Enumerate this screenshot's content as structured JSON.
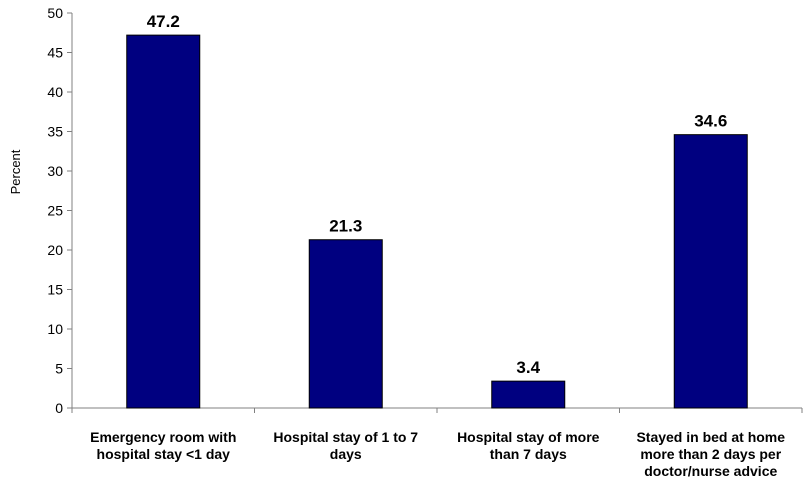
{
  "chart_data": {
    "type": "bar",
    "categories": [
      [
        "Emergency room with",
        "hospital stay <1 day"
      ],
      [
        "Hospital stay of 1 to 7",
        "days"
      ],
      [
        "Hospital stay of more",
        "than 7 days"
      ],
      [
        "Stayed in bed at home",
        "more than 2 days per",
        "doctor/nurse advice"
      ]
    ],
    "values": [
      47.2,
      21.3,
      3.4,
      34.6
    ],
    "data_labels": [
      "47.2",
      "21.3",
      "3.4",
      "34.6"
    ],
    "ylabel": "Percent",
    "xlabel": "",
    "ylim": [
      0,
      50
    ],
    "yticks": [
      0,
      5,
      10,
      15,
      20,
      25,
      30,
      35,
      40,
      45,
      50
    ],
    "grid": false,
    "legend": "none",
    "bar_color": "#000080"
  }
}
